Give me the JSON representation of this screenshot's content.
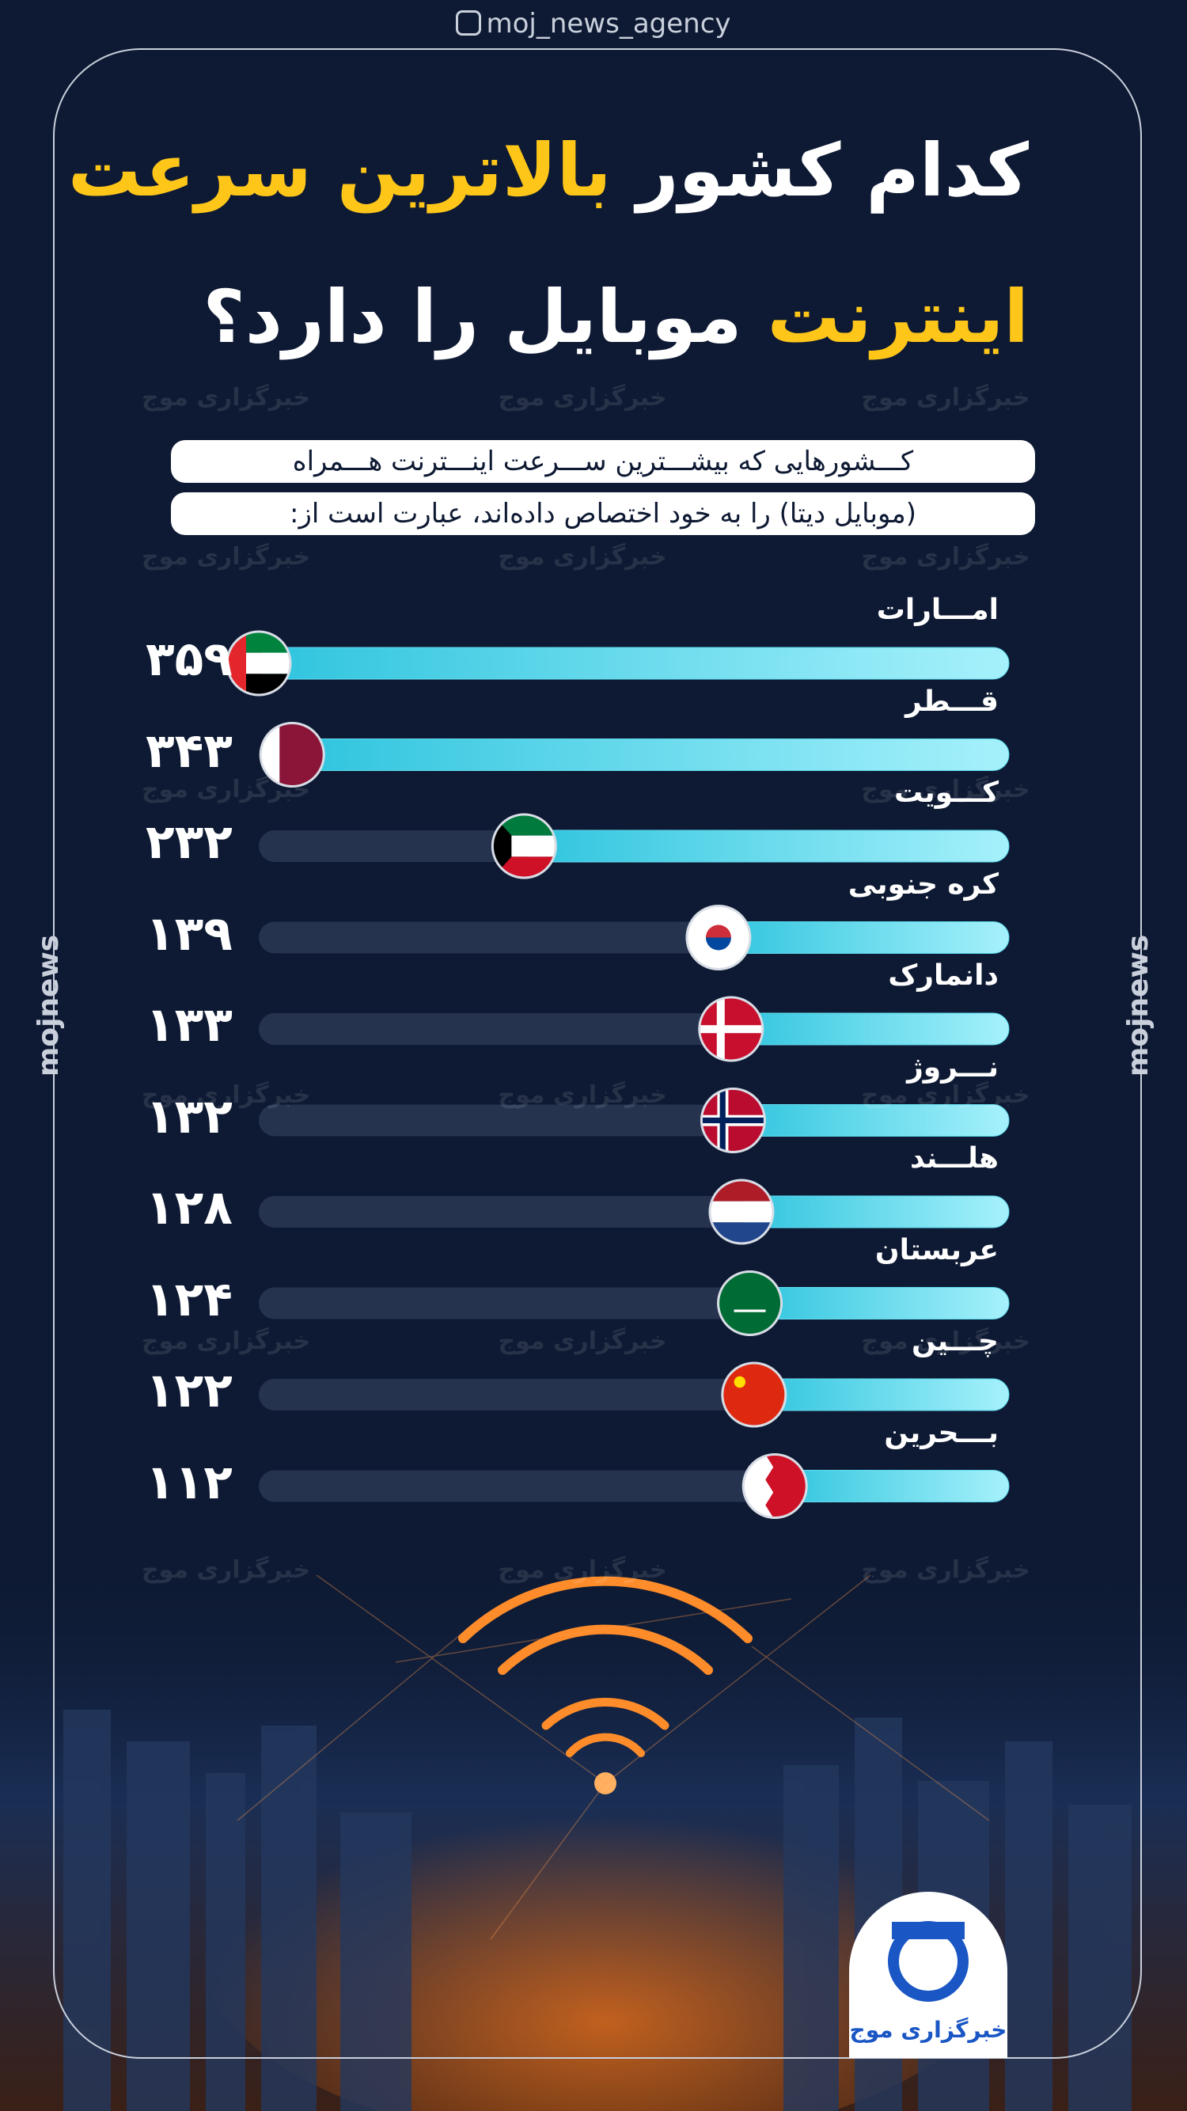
{
  "header": "moj_news_agency",
  "side_label": "mojnews",
  "watermark": "خبرگزاری موج",
  "logo_text": "خبرگزاری موج",
  "chart_data": {
    "type": "bar",
    "title_lines": [
      [
        {
          "text": "کدام کشور",
          "color": "#ffffff"
        },
        {
          "text": "بالاترین سرعت",
          "color": "#ffc61a"
        }
      ],
      [
        {
          "text": "اینترنت",
          "color": "#ffc61a"
        },
        {
          "text": "موبایل را دارد؟",
          "color": "#ffffff"
        }
      ]
    ],
    "subtitle_lines": [
      "کـــشورهایی که بیشـــترین ســـرعت اینـــترنت هـــمراه",
      "(موبایل دیتا) را به خود اختصاص داده‌اند، عبارت است از:"
    ],
    "categories": [
      "امـــارات",
      "قـــطر",
      "کـــویت",
      "کره جنوبی",
      "دانمارک",
      "نـــروژ",
      "هلـــند",
      "عربستان",
      "چـــین",
      "بـــحرین"
    ],
    "values": [
      359,
      343,
      232,
      139,
      133,
      132,
      128,
      124,
      122,
      112
    ],
    "value_labels": [
      "۳۵۹",
      "۳۴۳",
      "۲۳۲",
      "۱۳۹",
      "۱۳۳",
      "۱۳۲",
      "۱۲۸",
      "۱۲۴",
      "۱۲۲",
      "۱۱۲"
    ],
    "color": "#5fdcf0"
  }
}
